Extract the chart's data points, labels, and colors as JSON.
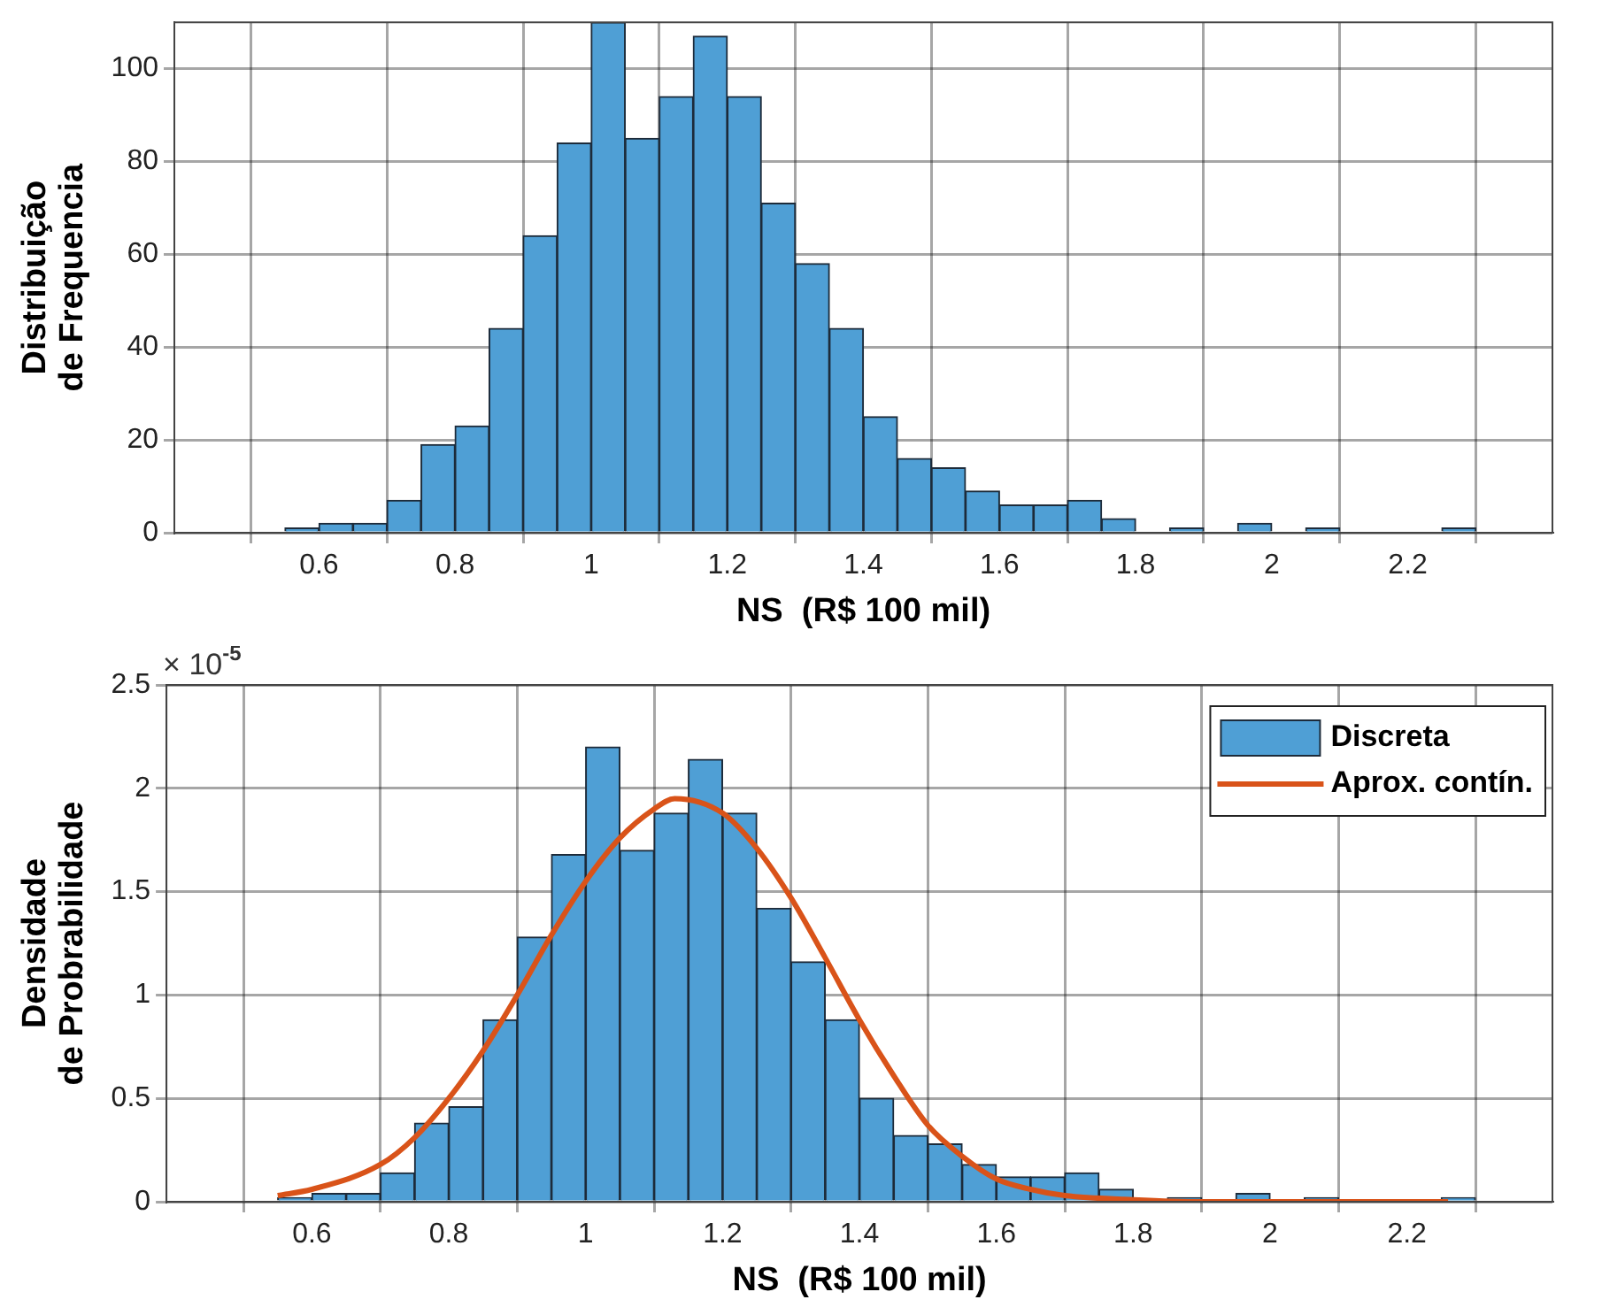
{
  "chart_data": [
    {
      "type": "histogram",
      "xlabel": "NS  (R$ 100 mil)",
      "ylabel": "Distribuição\nde Frequencia",
      "color": "#4f9fd5",
      "bins": [
        0.55,
        0.6,
        0.65,
        0.7,
        0.75,
        0.8,
        0.85,
        0.9,
        0.95,
        1.0,
        1.05,
        1.1,
        1.15,
        1.2,
        1.25,
        1.3,
        1.35,
        1.4,
        1.45,
        1.5,
        1.55,
        1.6,
        1.65,
        1.7,
        1.75,
        1.8,
        1.85,
        1.9,
        1.95,
        2.0,
        2.05,
        2.1,
        2.15,
        2.2,
        2.25,
        2.3
      ],
      "values": [
        1,
        2,
        2,
        7,
        19,
        23,
        44,
        64,
        84,
        110,
        85,
        94,
        107,
        94,
        71,
        58,
        44,
        25,
        16,
        14,
        9,
        6,
        6,
        7,
        3,
        0,
        1,
        0,
        2,
        0,
        1,
        0,
        0,
        0,
        1
      ],
      "xlim": [
        0.5,
        2.3
      ],
      "xticks": [
        0.6,
        0.8,
        1,
        1.2,
        1.4,
        1.6,
        1.8,
        2,
        2.2
      ],
      "ylim": [
        0,
        110
      ],
      "yticks": [
        0,
        20,
        40,
        60,
        80,
        100
      ],
      "grid": true
    },
    {
      "type": "histogram",
      "xlabel": "NS  (R$ 100 mil)",
      "ylabel": "Densidade\nde Probrabilidade",
      "legend": "top right",
      "annotations": [
        "× 10$^{-5}$"
      ],
      "bins": [
        0.55,
        0.6,
        0.65,
        0.7,
        0.75,
        0.8,
        0.85,
        0.9,
        0.95,
        1.0,
        1.05,
        1.1,
        1.15,
        1.2,
        1.25,
        1.3,
        1.35,
        1.4,
        1.45,
        1.5,
        1.55,
        1.6,
        1.65,
        1.7,
        1.75,
        1.8,
        1.85,
        1.9,
        1.95,
        2.0,
        2.05,
        2.1,
        2.15,
        2.2,
        2.25,
        2.3
      ],
      "series": [
        {
          "type": "histogram",
          "name": "Discreta",
          "color": "#4f9fd5",
          "values": [
            0.02,
            0.04,
            0.04,
            0.14,
            0.38,
            0.46,
            0.88,
            1.28,
            1.68,
            2.2,
            1.7,
            1.88,
            2.14,
            1.88,
            1.42,
            1.16,
            0.88,
            0.5,
            0.32,
            0.28,
            0.18,
            0.12,
            0.12,
            0.14,
            0.06,
            0,
            0.02,
            0,
            0.04,
            0,
            0.02,
            0,
            0,
            0,
            0.02
          ]
        },
        {
          "type": "line",
          "name": "Aprox. contín.",
          "color": "#d95319",
          "marker": "none",
          "line_style": "solid",
          "x": [
            0.55,
            0.6,
            0.7,
            0.75,
            0.8,
            0.85,
            0.9,
            0.95,
            1.0,
            1.05,
            1.1,
            1.13,
            1.2,
            1.25,
            1.3,
            1.35,
            1.4,
            1.45,
            1.5,
            1.55,
            1.6,
            1.65,
            1.7,
            1.8,
            1.9,
            2.0,
            2.26
          ],
          "values": [
            0.03,
            0.06,
            0.18,
            0.31,
            0.5,
            0.73,
            1,
            1.29,
            1.55,
            1.76,
            1.9,
            1.95,
            1.88,
            1.71,
            1.47,
            1.18,
            0.88,
            0.61,
            0.37,
            0.22,
            0.11,
            0.06,
            0.03,
            0.01,
            0,
            0,
            0
          ]
        }
      ],
      "xlim": [
        0.5,
        2.3
      ],
      "xticks": [
        0.6,
        0.8,
        1,
        1.2,
        1.4,
        1.6,
        1.8,
        2,
        2.2
      ],
      "ylim": [
        0,
        2.5
      ],
      "yticks": [
        0,
        0.5,
        1,
        1.5,
        2,
        2.5
      ],
      "grid": true
    }
  ]
}
